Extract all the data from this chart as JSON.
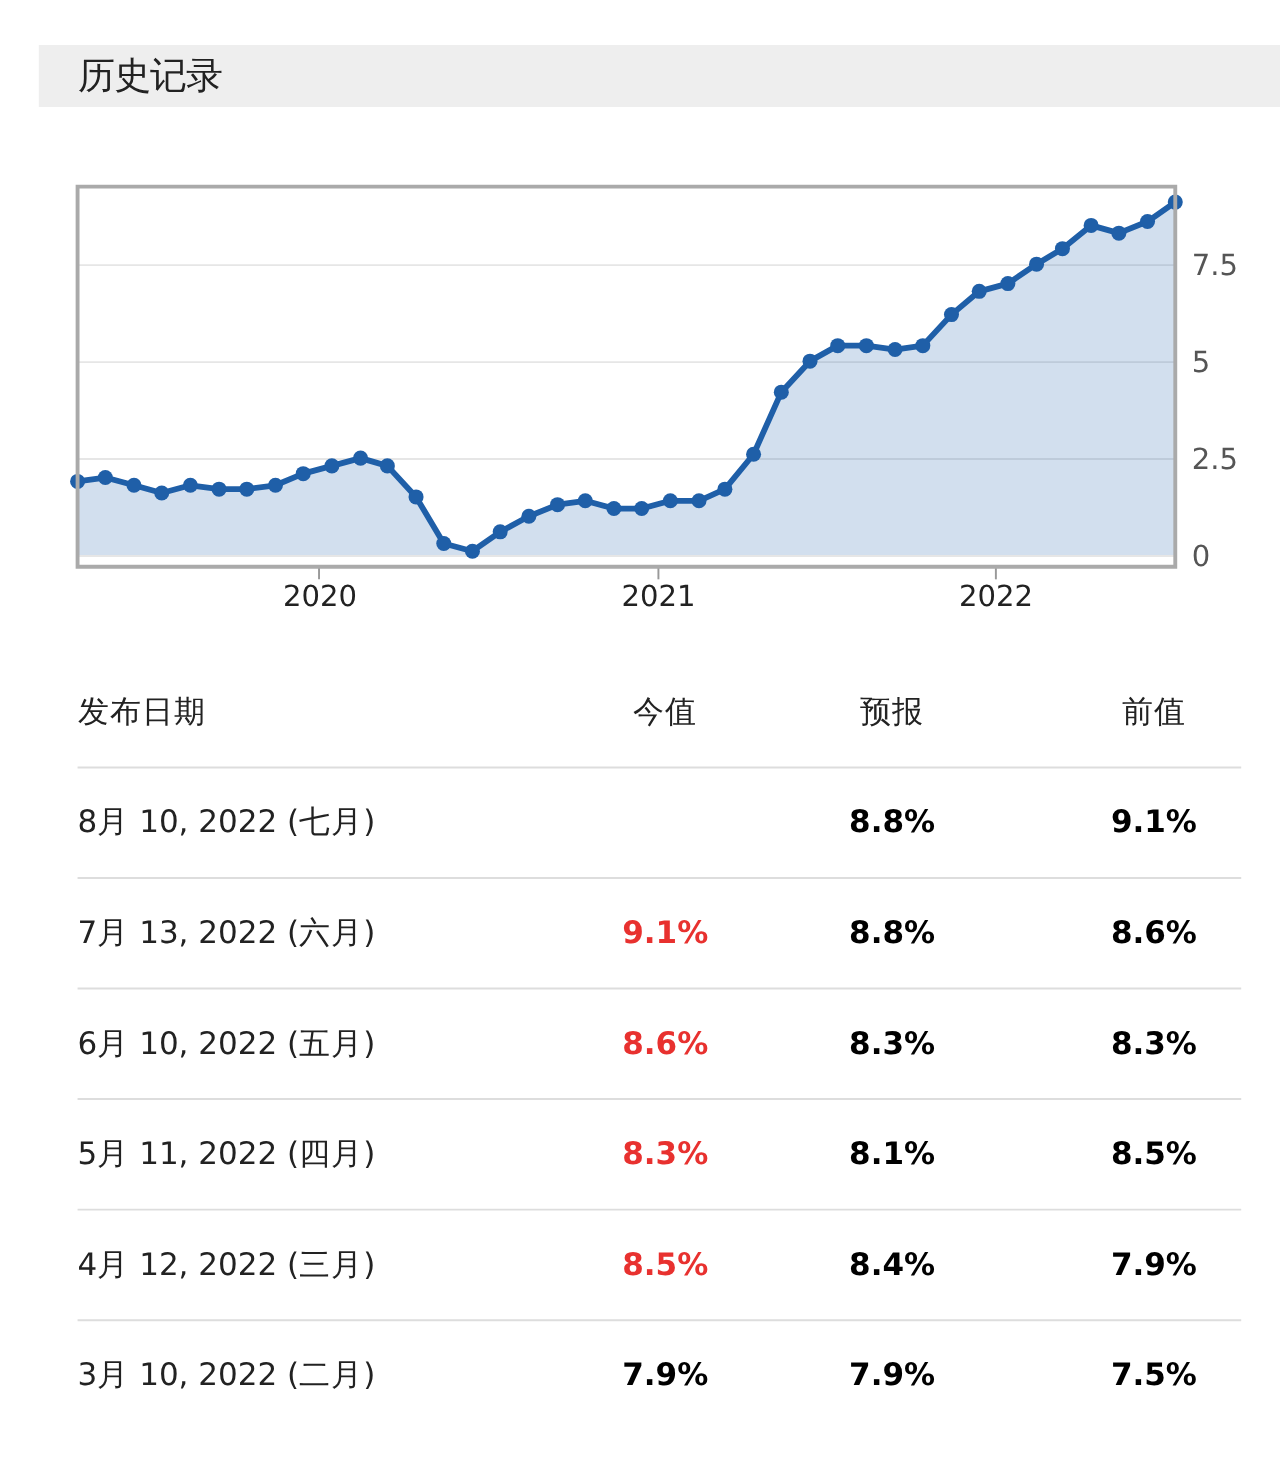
{
  "chart_data": [
    {
      "type": "area",
      "title": "历史记录",
      "x": [
        "2019-04-15",
        "2019-05-15",
        "2019-06-15",
        "2019-07-15",
        "2019-08-15",
        "2019-09-15",
        "2019-10-15",
        "2019-11-15",
        "2019-12-15",
        "2020-01-15",
        "2020-02-15",
        "2020-03-15",
        "2020-04-15",
        "2020-05-15",
        "2020-06-15",
        "2020-07-15",
        "2020-08-15",
        "2020-09-15",
        "2020-10-15",
        "2020-11-15",
        "2020-12-15",
        "2021-01-15",
        "2021-02-15",
        "2021-03-15",
        "2021-04-15",
        "2021-05-15",
        "2021-06-15",
        "2021-07-15",
        "2021-08-15",
        "2021-09-15",
        "2021-10-15",
        "2021-11-15",
        "2021-12-15",
        "2022-01-15",
        "2022-02-15",
        "2022-03-15",
        "2022-04-15",
        "2022-05-15",
        "2022-06-15",
        "2022-07-15"
      ],
      "series": [
        {
          "color": "#1f5fa8",
          "values": [
            1.9,
            2.0,
            1.8,
            1.6,
            1.8,
            1.7,
            1.7,
            1.8,
            2.1,
            2.3,
            2.5,
            2.3,
            1.5,
            0.3,
            0.1,
            0.6,
            1.0,
            1.3,
            1.4,
            1.2,
            1.2,
            1.4,
            1.4,
            1.7,
            2.6,
            4.2,
            5.0,
            5.4,
            5.4,
            5.3,
            5.4,
            6.2,
            6.8,
            7.0,
            7.5,
            7.9,
            8.5,
            8.3,
            8.6,
            9.1
          ]
        }
      ],
      "xlim": [
        "2019-04-15",
        "2022-07-15"
      ],
      "xticks": [
        "2020",
        "2021",
        "2022"
      ],
      "ylim": [
        -0.3,
        9.5
      ],
      "yticks": [
        0,
        2.5,
        5,
        7.5
      ],
      "grid": "y",
      "marker": "circle"
    },
    {
      "type": "other",
      "ylabel": "发布日期",
      "categories": [
        "今值",
        "预报",
        "前值"
      ],
      "y_categories": [
        "8月 10, 2022 (七月)",
        "7月 13, 2022 (六月)",
        "6月 10, 2022 (五月)",
        "5月 11, 2022 (四月)",
        "4月 12, 2022 (三月)",
        "3月 10, 2022 (二月)"
      ],
      "cell_labels": [
        [
          null,
          "8.8%",
          "9.1%"
        ],
        [
          "9.1%",
          "8.8%",
          "8.6%"
        ],
        [
          "8.6%",
          "8.3%",
          "8.3%"
        ],
        [
          "8.3%",
          "8.1%",
          "8.5%"
        ],
        [
          "8.5%",
          "8.4%",
          "7.9%"
        ],
        [
          "7.9%",
          "7.9%",
          "7.5%"
        ]
      ],
      "colors": [
        [
          null,
          "#000000",
          "#000000"
        ],
        [
          "#e8312f",
          "#000000",
          "#000000"
        ],
        [
          "#e8312f",
          "#000000",
          "#000000"
        ],
        [
          "#e8312f",
          "#000000",
          "#000000"
        ],
        [
          "#e8312f",
          "#000000",
          "#000000"
        ],
        [
          "#000000",
          "#000000",
          "#000000"
        ]
      ]
    }
  ]
}
